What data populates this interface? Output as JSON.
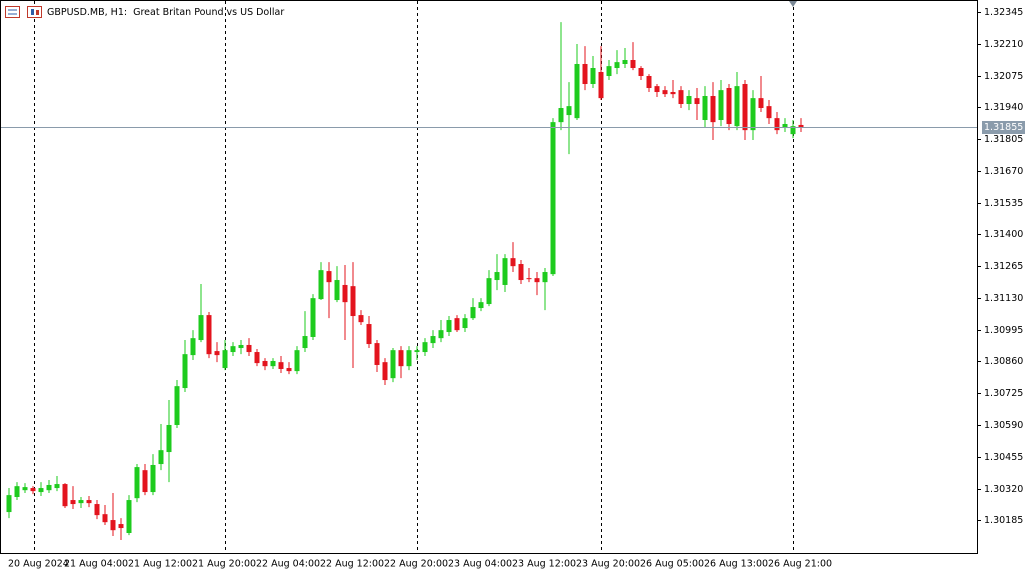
{
  "chart_data": {
    "type": "candlestick",
    "title": "GBPUSD.MB, H1:  Great Britan Pound vs US Dollar",
    "categories": [
      "20 Aug 2024",
      null,
      null,
      null,
      null,
      null,
      null,
      "21 Aug 04:00",
      null,
      null,
      null,
      null,
      null,
      null,
      null,
      "21 Aug 12:00",
      null,
      null,
      null,
      null,
      null,
      null,
      null,
      "21 Aug 20:00",
      null,
      null,
      null,
      null,
      null,
      null,
      null,
      "22 Aug 04:00",
      null,
      null,
      null,
      null,
      null,
      null,
      null,
      "22 Aug 12:00",
      null,
      null,
      null,
      null,
      null,
      null,
      null,
      "22 Aug 20:00",
      null,
      null,
      null,
      null,
      null,
      null,
      null,
      "23 Aug 04:00",
      null,
      null,
      null,
      null,
      null,
      null,
      null,
      "23 Aug 12:00",
      null,
      null,
      null,
      null,
      null,
      null,
      null,
      "23 Aug 20:00",
      null,
      null,
      null,
      null,
      null,
      null,
      null,
      "26 Aug 05:00",
      null,
      null,
      null,
      null,
      null,
      null,
      null,
      "26 Aug 13:00",
      null,
      null,
      null,
      null,
      null,
      null,
      null,
      "26 Aug 21:00",
      null,
      null,
      null,
      null
    ],
    "open": [
      1.3022,
      1.30284,
      1.30313,
      1.30322,
      1.30305,
      1.30313,
      1.30322,
      1.30339,
      1.30271,
      1.30258,
      1.30271,
      1.30254,
      1.30211,
      1.30186,
      1.30169,
      1.30131,
      1.30279,
      1.30398,
      1.30305,
      1.30424,
      1.30475,
      1.3059,
      1.30747,
      1.30887,
      1.30951,
      1.31057,
      1.30904,
      1.30832,
      1.309,
      1.30917,
      1.3093,
      1.309,
      1.30862,
      1.3084,
      1.30857,
      1.30832,
      1.30819,
      1.30917,
      1.30964,
      1.31125,
      1.31244,
      1.31121,
      1.31185,
      1.3118,
      1.31057,
      1.31019,
      1.30938,
      1.30857,
      1.30789,
      1.30908,
      1.3084,
      1.309,
      1.309,
      1.30938,
      1.30959,
      1.30985,
      1.31044,
      1.31002,
      1.31044,
      1.31087,
      1.31104,
      1.31206,
      1.31185,
      1.31299,
      1.31274,
      1.31214,
      1.31214,
      1.31197,
      1.31231,
      1.31877,
      1.31907,
      1.31894,
      1.32124,
      1.32039,
      1.3209,
      1.32073,
      1.32107,
      1.32124,
      1.32141,
      1.32107,
      1.32073,
      1.3203,
      1.32013,
      1.32005,
      1.32013,
      1.31954,
      1.31979,
      1.31886,
      1.31988,
      1.31886,
      1.32022,
      1.3186,
      1.32039,
      1.31843,
      1.31979,
      1.31945,
      1.31894,
      1.31852,
      1.31826,
      1.31865
    ],
    "high": [
      1.30322,
      1.30347,
      1.30343,
      1.3033,
      1.30347,
      1.30356,
      1.30373,
      1.30343,
      1.3033,
      1.30284,
      1.30288,
      1.30271,
      1.3025,
      1.30301,
      1.30194,
      1.30292,
      1.30424,
      1.30424,
      1.30466,
      1.30594,
      1.30696,
      1.30781,
      1.30951,
      1.30993,
      1.31189,
      1.3107,
      1.30942,
      1.30951,
      1.30942,
      1.30951,
      1.30959,
      1.30913,
      1.30874,
      1.30874,
      1.30883,
      1.30857,
      1.30925,
      1.31074,
      1.31146,
      1.31282,
      1.31282,
      1.31265,
      1.3127,
      1.31282,
      1.31078,
      1.31053,
      1.30951,
      1.30874,
      1.30917,
      1.30925,
      1.30925,
      1.30925,
      1.30959,
      1.30993,
      1.31036,
      1.31053,
      1.31057,
      1.31061,
      1.31129,
      1.31129,
      1.31248,
      1.31316,
      1.31316,
      1.31367,
      1.31291,
      1.31257,
      1.3124,
      1.31257,
      1.31894,
      1.32302,
      1.32047,
      1.32209,
      1.322,
      1.32158,
      1.322,
      1.32141,
      1.32183,
      1.32192,
      1.32217,
      1.32115,
      1.32081,
      1.32039,
      1.3203,
      1.32056,
      1.3203,
      1.32013,
      1.32022,
      1.3203,
      1.32047,
      1.32056,
      1.32039,
      1.3209,
      1.32056,
      1.32013,
      1.32073,
      1.31971,
      1.3192,
      1.31894,
      1.31886,
      1.31894
    ],
    "low": [
      1.30194,
      1.30271,
      1.30301,
      1.30296,
      1.30288,
      1.30301,
      1.30309,
      1.30237,
      1.30233,
      1.30237,
      1.30241,
      1.3019,
      1.30165,
      1.30118,
      1.30101,
      1.30122,
      1.30262,
      1.30292,
      1.30292,
      1.30398,
      1.30347,
      1.30577,
      1.3073,
      1.30866,
      1.30942,
      1.30874,
      1.30857,
      1.30823,
      1.30883,
      1.30891,
      1.30883,
      1.3084,
      1.30823,
      1.30828,
      1.30811,
      1.30806,
      1.30806,
      1.309,
      1.30951,
      1.31121,
      1.31044,
      1.31112,
      1.30951,
      1.30832,
      1.31015,
      1.30917,
      1.30815,
      1.3076,
      1.30772,
      1.30789,
      1.30823,
      1.30866,
      1.30883,
      1.30917,
      1.30942,
      1.30968,
      1.30985,
      1.30985,
      1.31036,
      1.31074,
      1.31095,
      1.31163,
      1.31155,
      1.3124,
      1.31189,
      1.31197,
      1.31142,
      1.31078,
      1.31223,
      1.31843,
      1.31741,
      1.31886,
      1.32013,
      1.32022,
      1.31971,
      1.32056,
      1.32081,
      1.32107,
      1.32098,
      1.32056,
      1.32005,
      1.31984,
      1.31984,
      1.31979,
      1.31937,
      1.31928,
      1.31886,
      1.31852,
      1.31801,
      1.3186,
      1.31843,
      1.31843,
      1.31801,
      1.31801,
      1.3192,
      1.31869,
      1.31826,
      1.31835,
      1.31809,
      1.31835
    ],
    "close": [
      1.30292,
      1.3033,
      1.30326,
      1.30309,
      1.30322,
      1.30335,
      1.30339,
      1.30245,
      1.30254,
      1.30271,
      1.30258,
      1.30207,
      1.30177,
      1.30143,
      1.30152,
      1.30271,
      1.30411,
      1.30305,
      1.3042,
      1.30483,
      1.3059,
      1.30755,
      1.30891,
      1.30959,
      1.31057,
      1.30891,
      1.30887,
      1.30908,
      1.30925,
      1.3093,
      1.309,
      1.30853,
      1.3084,
      1.30862,
      1.30828,
      1.30819,
      1.30908,
      1.30968,
      1.31129,
      1.31248,
      1.31197,
      1.31206,
      1.31112,
      1.31053,
      1.31027,
      1.30934,
      1.30845,
      1.30781,
      1.30908,
      1.3084,
      1.30908,
      1.30908,
      1.30942,
      1.30968,
      1.30993,
      1.31036,
      1.30993,
      1.31044,
      1.31091,
      1.31112,
      1.31214,
      1.3124,
      1.31299,
      1.31265,
      1.31206,
      1.3121,
      1.31197,
      1.3124,
      1.31877,
      1.31937,
      1.31945,
      1.32124,
      1.32039,
      1.32107,
      1.31979,
      1.32115,
      1.32132,
      1.32141,
      1.32107,
      1.32073,
      1.32022,
      1.32005,
      1.31996,
      1.31996,
      1.31954,
      1.31988,
      1.31954,
      1.31988,
      1.31877,
      1.32013,
      1.31869,
      1.3203,
      1.31843,
      1.31979,
      1.31937,
      1.31894,
      1.31843,
      1.31869,
      1.3186,
      1.31855
    ],
    "up_color": "#1ecb1e",
    "down_color": "#e3141e",
    "ylim": [
      1.30046,
      1.32396
    ],
    "yticks": [
      1.32345,
      {
        "value": 1.3221,
        "label": "1.32210"
      },
      1.32075,
      {
        "value": 1.3194,
        "label": "1.31940"
      },
      1.31805,
      {
        "value": 1.3167,
        "label": "1.31670"
      },
      1.31535,
      {
        "value": 1.314,
        "label": "1.31400"
      },
      1.31265,
      {
        "value": 1.3113,
        "label": "1.31130"
      },
      1.30995,
      {
        "value": 1.3086,
        "label": "1.30860"
      },
      1.30725,
      {
        "value": 1.3059,
        "label": "1.30590"
      },
      1.30455,
      {
        "value": 1.3032,
        "label": "1.30320"
      },
      1.30185
    ],
    "last_price": 1.31855,
    "last_price_color": "#8a9bab"
  }
}
